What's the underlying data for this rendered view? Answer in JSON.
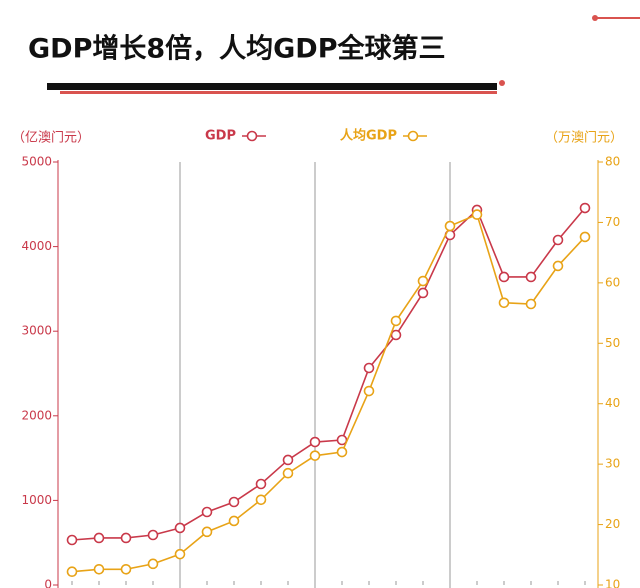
{
  "chart_data": {
    "type": "line",
    "title": "GDP增长8倍，人均GDP全球第三",
    "y_label": "（亿澳门元）",
    "y2_label": "（万澳门元）",
    "categories": [
      null,
      null,
      null,
      null,
      null,
      null,
      null,
      null,
      null,
      null,
      null,
      null,
      null,
      null,
      null,
      null,
      null,
      null,
      null,
      null
    ],
    "series": [
      {
        "name": "GDP",
        "color": "#c9394a",
        "values": [
          532,
          556,
          556,
          591,
          674,
          863,
          981,
          1194,
          1478,
          1690,
          1714,
          2565,
          2955,
          3452,
          4137,
          4433,
          3641,
          3641,
          4078,
          4456
        ]
      },
      {
        "name": "人均GDP",
        "color": "#e8a317",
        "axis": "y2",
        "values": [
          12.2,
          12.6,
          12.6,
          13.5,
          15.1,
          18.8,
          20.6,
          24.1,
          28.5,
          31.4,
          32.0,
          42.1,
          53.7,
          60.3,
          69.4,
          71.3,
          56.7,
          56.5,
          62.8,
          67.6
        ]
      }
    ],
    "ylim": [
      0,
      5000
    ],
    "yticks": [
      0,
      1000,
      2000,
      3000,
      4000,
      5000
    ],
    "y2lim": [
      10,
      80
    ],
    "y2ticks": [
      10,
      20,
      30,
      40,
      50,
      60,
      70,
      80
    ],
    "legend": "top"
  }
}
